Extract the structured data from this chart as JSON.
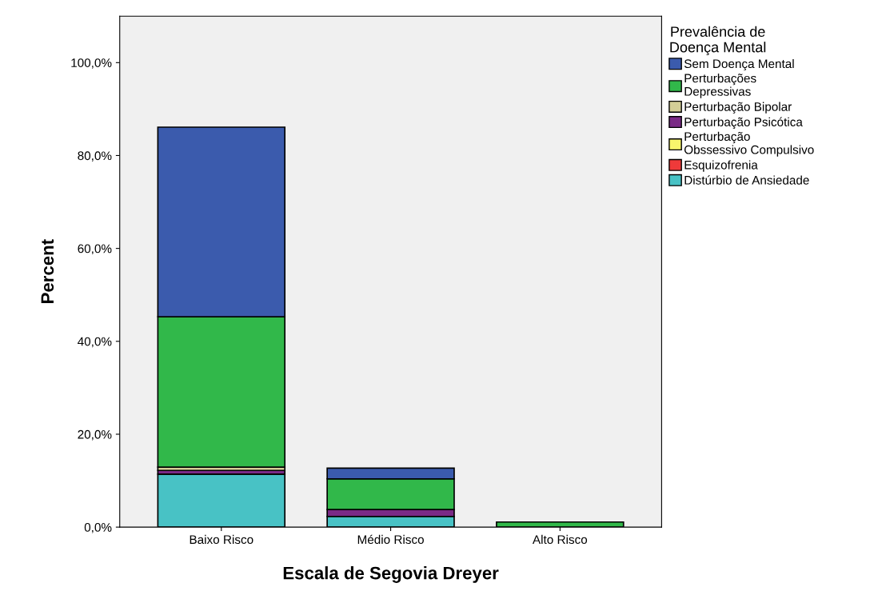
{
  "chart_data": {
    "type": "bar",
    "stacked": true,
    "xlabel": "Escala de Segovia Dreyer",
    "ylabel": "Percent",
    "legend_title": "Prevalência de\nDoença Mental",
    "legend": "right",
    "categories": [
      "Baixo Risco",
      "Médio Risco",
      "Alto Risco"
    ],
    "ylim": [
      0,
      110
    ],
    "yticks": [
      {
        "value": 0,
        "label": "0,0%"
      },
      {
        "value": 20,
        "label": "20,0%"
      },
      {
        "value": 40,
        "label": "40,0%"
      },
      {
        "value": 60,
        "label": "60,0%"
      },
      {
        "value": 80,
        "label": "80,0%"
      },
      {
        "value": 100,
        "label": "100,0%"
      }
    ],
    "grid": false,
    "series": [
      {
        "name": "Distúrbio de Ansiedade",
        "color": "#48c2c5",
        "values": [
          11.4,
          2.3,
          null
        ]
      },
      {
        "name": "Esquizofrenia",
        "color": "#ef3a3a",
        "values": [
          null,
          null,
          null
        ]
      },
      {
        "name": "Perturbação\nObssessivo Compulsivo",
        "color": "#f8f66c",
        "values": [
          null,
          null,
          null
        ]
      },
      {
        "name": "Perturbação Psicótica",
        "color": "#7a2a86",
        "values": [
          0.8,
          1.5,
          null
        ]
      },
      {
        "name": "Perturbação Bipolar",
        "color": "#d3ce97",
        "values": [
          0.7,
          null,
          null
        ]
      },
      {
        "name": "Perturbações\nDepressivas",
        "color": "#31b84a",
        "values": [
          32.4,
          6.6,
          1.1
        ]
      },
      {
        "name": "Sem Doença Mental",
        "color": "#3b5bad",
        "values": [
          40.8,
          2.3,
          null
        ]
      }
    ]
  }
}
